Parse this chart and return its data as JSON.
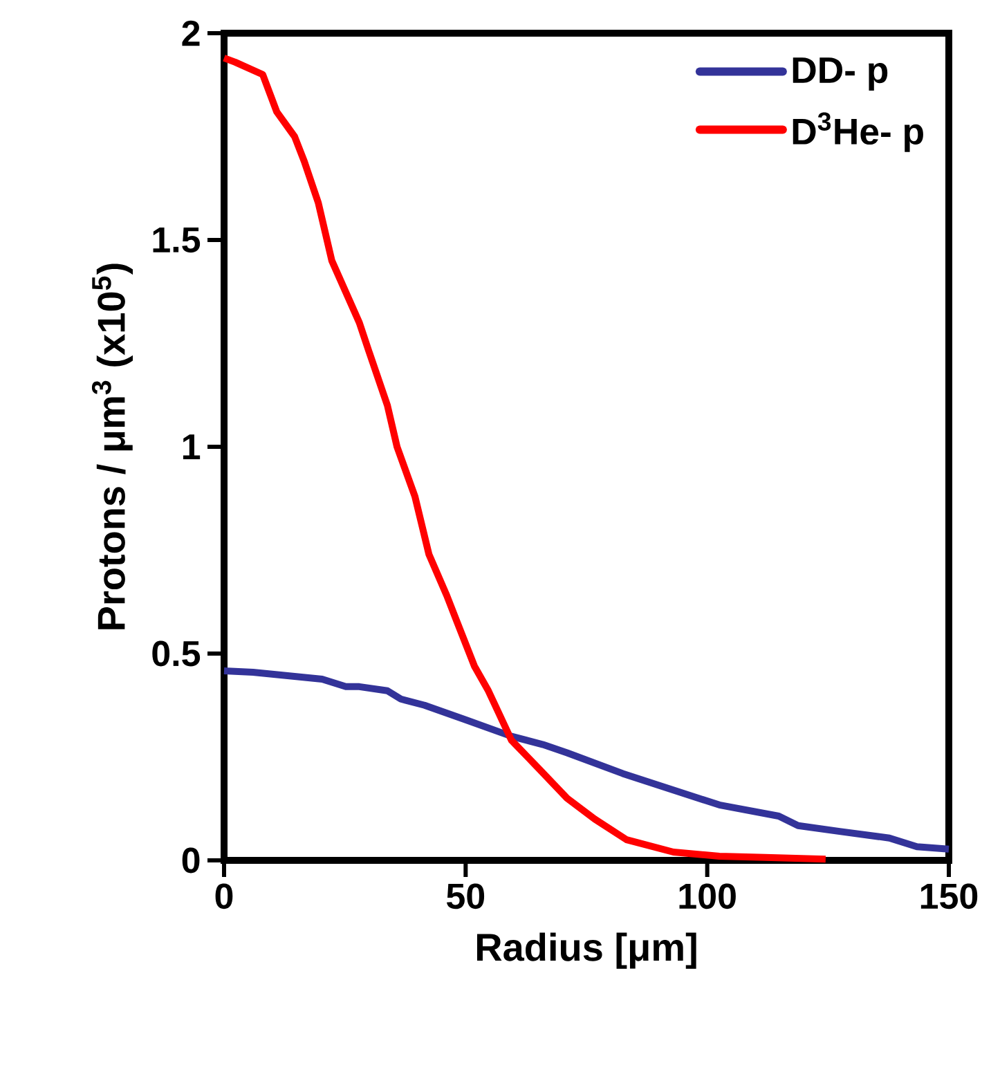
{
  "chart_data": {
    "type": "line",
    "xlabel": "Radius [μm]",
    "ylabel": "Protons / μm$^{3}$ (x10$^{5}$)",
    "xlim": [
      0,
      150
    ],
    "ylim": [
      0,
      2
    ],
    "xticks": [
      0,
      50,
      100,
      150
    ],
    "yticks": [
      0,
      0.5,
      1,
      1.5,
      2
    ],
    "grid": false,
    "legend": "top right",
    "marker": "none",
    "line_style": "solid",
    "series": [
      {
        "name": "DD- p",
        "color": "#333399",
        "x": [
          0,
          6,
          20.3,
          25.2,
          28,
          33.8,
          36.6,
          41.5,
          50,
          59.5,
          66,
          71,
          82.5,
          102.5,
          114.8,
          118.8,
          127.4,
          137.7,
          143.4,
          150
        ],
        "values": [
          0.458,
          0.455,
          0.438,
          0.42,
          0.42,
          0.41,
          0.39,
          0.375,
          0.34,
          0.3,
          0.28,
          0.26,
          0.21,
          0.134,
          0.107,
          0.084,
          0.07,
          0.054,
          0.033,
          0.027
        ]
      },
      {
        "name": "D$^{3}$He- p",
        "color": "#ff0000",
        "x": [
          0,
          2.3,
          8,
          10.9,
          14.6,
          16.6,
          19.5,
          22.3,
          28,
          30,
          33.8,
          35.8,
          39.5,
          42.4,
          46.1,
          48.1,
          51.8,
          54.7,
          59.5,
          65.3,
          71,
          76.7,
          83.3,
          93,
          102.5,
          112,
          124.5
        ],
        "values": [
          1.94,
          1.93,
          1.9,
          1.81,
          1.75,
          1.69,
          1.59,
          1.45,
          1.3,
          1.23,
          1.1,
          1.0,
          0.88,
          0.74,
          0.64,
          0.58,
          0.47,
          0.41,
          0.29,
          0.22,
          0.15,
          0.1,
          0.05,
          0.02,
          0.01,
          0.007,
          0.003
        ]
      }
    ]
  }
}
